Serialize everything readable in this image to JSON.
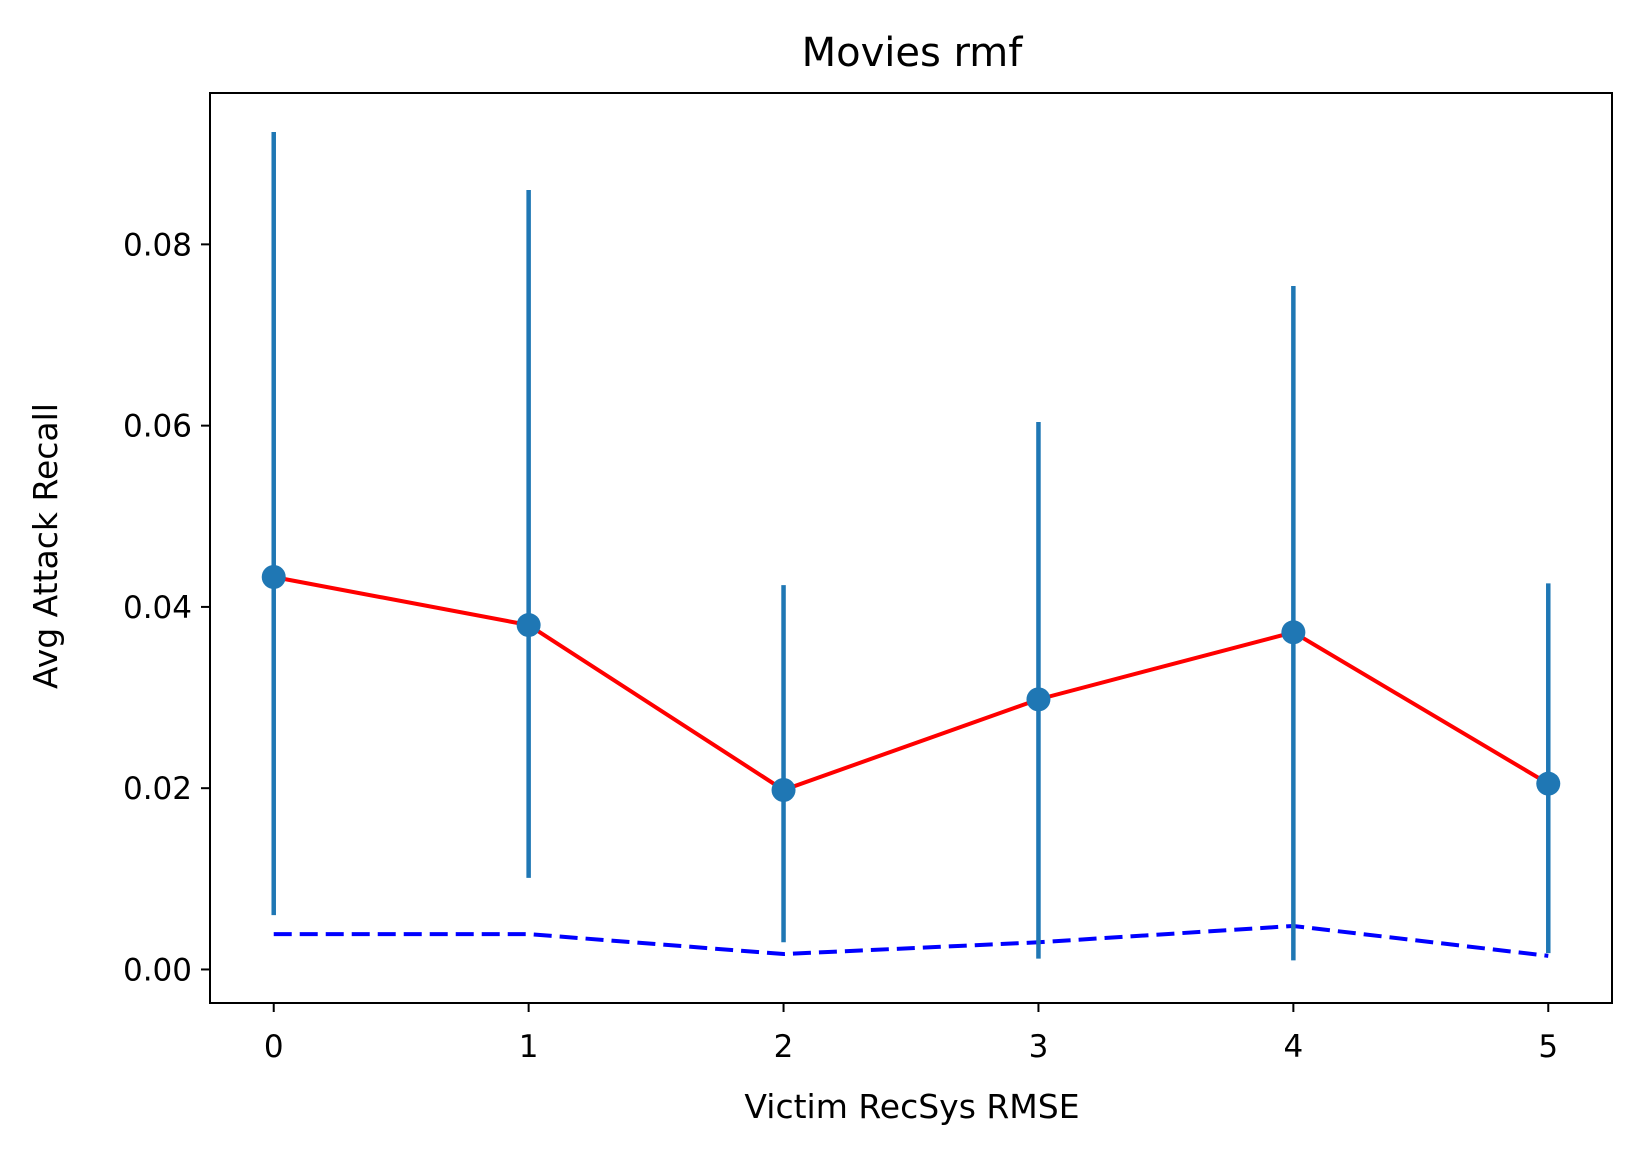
{
  "chart_data": {
    "type": "line",
    "title": "Movies rmf",
    "xlabel": "Victim RecSys RMSE",
    "ylabel": "Avg Attack Recall",
    "x": [
      0,
      1,
      2,
      3,
      4,
      5
    ],
    "xlim": [
      -0.25,
      5.25
    ],
    "ylim": [
      -0.0037,
      0.0967
    ],
    "x_ticks": [
      0,
      1,
      2,
      3,
      4,
      5
    ],
    "y_ticks": [
      0.0,
      0.02,
      0.04,
      0.06,
      0.08
    ],
    "x_tick_labels": [
      "0",
      "1",
      "2",
      "3",
      "4",
      "5"
    ],
    "y_tick_labels": [
      "0.00",
      "0.02",
      "0.04",
      "0.06",
      "0.08"
    ],
    "grid": false,
    "legend": "none",
    "series": [
      {
        "style": "solid",
        "color": "#ff0000",
        "marker_color": "#1f77b4",
        "values": [
          0.0433,
          0.038,
          0.0198,
          0.0298,
          0.0372,
          0.0205
        ],
        "error_low": [
          0.006,
          0.0101,
          0.003,
          0.0012,
          0.001,
          0.0018
        ],
        "error_high": [
          0.0924,
          0.086,
          0.0424,
          0.0604,
          0.0754,
          0.0426
        ],
        "error_color": "#1f77b4"
      },
      {
        "style": "dashed",
        "color": "#0000ff",
        "values": [
          0.0039,
          0.0039,
          0.0017,
          0.003,
          0.0048,
          0.0015
        ]
      }
    ]
  }
}
